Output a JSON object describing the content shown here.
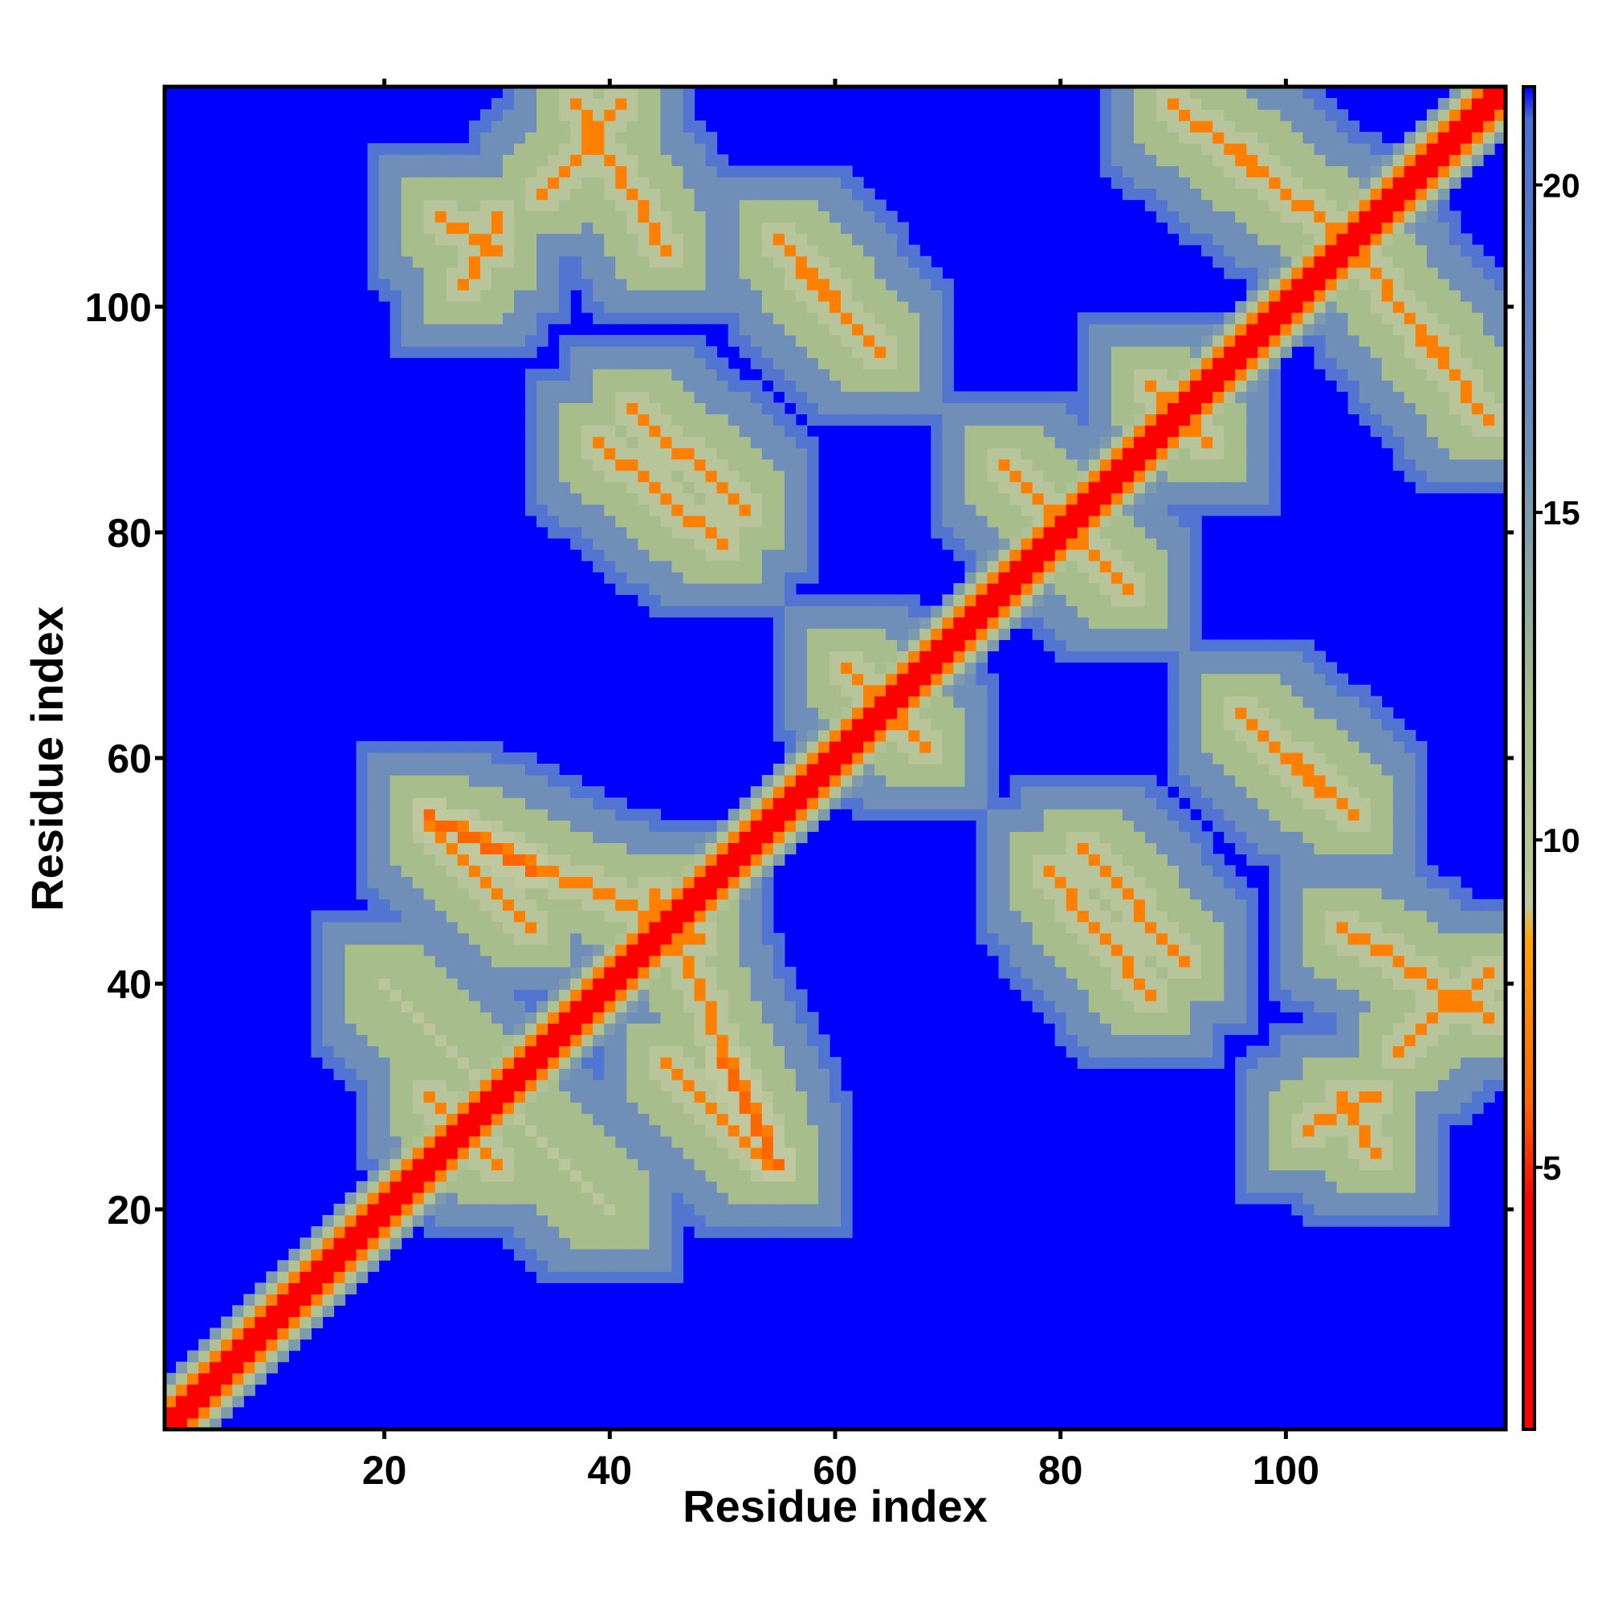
{
  "chart_data": {
    "type": "heatmap",
    "title": "",
    "xlabel": "Residue index",
    "ylabel": "Residue index",
    "n_residues": 119,
    "x_ticks": [
      "20",
      "40",
      "60",
      "80",
      "100"
    ],
    "y_ticks": [
      "20",
      "40",
      "60",
      "80",
      "100"
    ],
    "x_tick_values": [
      20,
      40,
      60,
      80,
      100
    ],
    "y_tick_values": [
      20,
      40,
      60,
      80,
      100
    ],
    "xlim": [
      1,
      119
    ],
    "ylim": [
      1,
      119
    ],
    "colorbar": {
      "ticks": [
        "5",
        "10",
        "15",
        "20"
      ],
      "tick_values": [
        5,
        10,
        15,
        20
      ],
      "range": [
        1,
        21.5
      ],
      "stops": [
        {
          "value": 1,
          "color": "#ff0000"
        },
        {
          "value": 4.5,
          "color": "#ff0000"
        },
        {
          "value": 6,
          "color": "#ff6600"
        },
        {
          "value": 8.5,
          "color": "#ffa500"
        },
        {
          "value": 9,
          "color": "#c0c8a0"
        },
        {
          "value": 12,
          "color": "#a8bd8c"
        },
        {
          "value": 16,
          "color": "#6f8fb8"
        },
        {
          "value": 21,
          "color": "#4a6fd6"
        },
        {
          "value": 21.5,
          "color": "#0000ff"
        }
      ]
    },
    "background_value": 21.5,
    "diagonal": {
      "from": 1,
      "to": 119,
      "value": 1
    },
    "contact_bands": [
      {
        "from": [
          20,
          40
        ],
        "to": [
          40,
          20
        ],
        "value": 9.5
      },
      {
        "from": [
          26,
          28
        ],
        "to": [
          30,
          24
        ],
        "value": 7
      },
      {
        "from": [
          44,
          48
        ],
        "to": [
          54,
          26
        ],
        "value": 7
      },
      {
        "from": [
          50,
          33
        ],
        "to": [
          55,
          24
        ],
        "value": 6
      },
      {
        "from": [
          24,
          54
        ],
        "to": [
          33,
          45
        ],
        "value": 7
      },
      {
        "from": [
          39,
          88
        ],
        "to": [
          50,
          79
        ],
        "value": 7
      },
      {
        "from": [
          55,
          106
        ],
        "to": [
          64,
          96
        ],
        "value": 7
      },
      {
        "from": [
          37,
          118
        ],
        "to": [
          45,
          105
        ],
        "value": 7
      },
      {
        "from": [
          25,
          108
        ],
        "to": [
          30,
          105
        ],
        "value": 7
      },
      {
        "from": [
          75,
          86
        ],
        "to": [
          86,
          75
        ],
        "value": 7
      },
      {
        "from": [
          61,
          68
        ],
        "to": [
          68,
          61
        ],
        "value": 7
      },
      {
        "from": [
          82,
          52
        ],
        "to": [
          91,
          42
        ],
        "value": 7
      },
      {
        "from": [
          96,
          64
        ],
        "to": [
          103,
          57
        ],
        "value": 7
      },
      {
        "from": [
          90,
          118
        ],
        "to": [
          100,
          110
        ],
        "value": 7
      },
      {
        "from": [
          103,
          108
        ],
        "to": [
          114,
          96
        ],
        "value": 7
      },
      {
        "from": [
          110,
          34
        ],
        "to": [
          118,
          41
        ],
        "value": 7
      },
      {
        "from": [
          102,
          27
        ],
        "to": [
          108,
          30
        ],
        "value": 7
      },
      {
        "from": [
          88,
          93
        ],
        "to": [
          92,
          90
        ],
        "value": 7
      }
    ],
    "grid": false,
    "legend": "colorbar at right"
  }
}
